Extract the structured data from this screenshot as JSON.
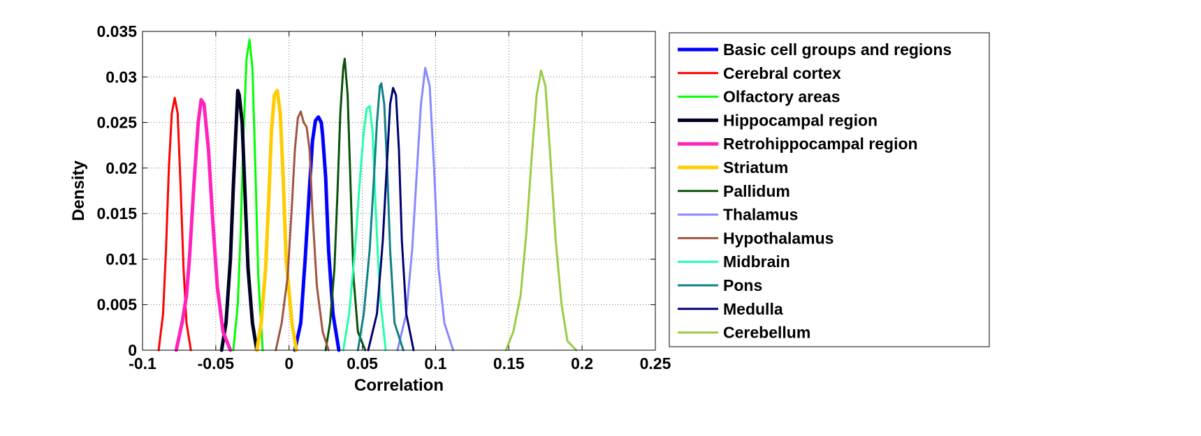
{
  "chart_data": {
    "type": "line",
    "title": "",
    "xlabel": "Correlation",
    "ylabel": "Density",
    "xlim": [
      -0.1,
      0.25
    ],
    "ylim": [
      0,
      0.035
    ],
    "x_ticks": [
      -0.1,
      -0.05,
      0,
      0.05,
      0.1,
      0.15,
      0.2,
      0.25
    ],
    "x_tick_labels": [
      "-0.1",
      "-0.05",
      "0",
      "0.05",
      "0.1",
      "0.15",
      "0.2",
      "0.25"
    ],
    "y_ticks": [
      0,
      0.005,
      0.01,
      0.015,
      0.02,
      0.025,
      0.03,
      0.035
    ],
    "y_tick_labels": [
      "0",
      "0.005",
      "0.01",
      "0.015",
      "0.02",
      "0.025",
      "0.03",
      "0.035"
    ],
    "grid": true,
    "legend_position": "outside-right",
    "series": [
      {
        "name": "Basic cell groups and regions",
        "color": "#0000ff",
        "thick": true,
        "x": [
          0.004,
          0.008,
          0.011,
          0.014,
          0.016,
          0.018,
          0.02,
          0.022,
          0.023,
          0.025,
          0.027,
          0.03,
          0.034
        ],
        "y": [
          0,
          0.003,
          0.01,
          0.018,
          0.023,
          0.0252,
          0.0256,
          0.025,
          0.0235,
          0.019,
          0.011,
          0.004,
          0
        ]
      },
      {
        "name": "Cerebral cortex",
        "color": "#ff0000",
        "thick": false,
        "x": [
          -0.089,
          -0.086,
          -0.084,
          -0.082,
          -0.08,
          -0.078,
          -0.076,
          -0.074,
          -0.072,
          -0.07,
          -0.067
        ],
        "y": [
          0,
          0.004,
          0.011,
          0.02,
          0.026,
          0.0277,
          0.026,
          0.018,
          0.009,
          0.003,
          0
        ]
      },
      {
        "name": "Olfactory areas",
        "color": "#00ff00",
        "thick": false,
        "x": [
          -0.038,
          -0.035,
          -0.033,
          -0.031,
          -0.029,
          -0.027,
          -0.025,
          -0.023,
          -0.021,
          -0.018
        ],
        "y": [
          0,
          0.005,
          0.013,
          0.024,
          0.032,
          0.0341,
          0.031,
          0.02,
          0.008,
          0
        ]
      },
      {
        "name": "Hippocampal region",
        "color": "#000022",
        "thick": true,
        "x": [
          -0.046,
          -0.043,
          -0.04,
          -0.038,
          -0.036,
          -0.035,
          -0.034,
          -0.032,
          -0.03,
          -0.028,
          -0.025,
          -0.022
        ],
        "y": [
          0,
          0.003,
          0.01,
          0.018,
          0.025,
          0.0285,
          0.028,
          0.025,
          0.017,
          0.009,
          0.003,
          0
        ]
      },
      {
        "name": "Retrohippocampal region",
        "color": "#ff22bb",
        "thick": true,
        "x": [
          -0.077,
          -0.073,
          -0.07,
          -0.068,
          -0.065,
          -0.062,
          -0.06,
          -0.058,
          -0.055,
          -0.052,
          -0.049,
          -0.045,
          -0.04
        ],
        "y": [
          0,
          0.003,
          0.006,
          0.01,
          0.018,
          0.025,
          0.0275,
          0.027,
          0.022,
          0.014,
          0.007,
          0.002,
          0
        ]
      },
      {
        "name": "Striatum",
        "color": "#ffcc00",
        "thick": true,
        "x": [
          -0.022,
          -0.019,
          -0.016,
          -0.014,
          -0.012,
          -0.01,
          -0.008,
          -0.006,
          -0.004,
          -0.002,
          0.002,
          0.005
        ],
        "y": [
          0,
          0.003,
          0.009,
          0.016,
          0.024,
          0.028,
          0.0285,
          0.026,
          0.019,
          0.01,
          0.003,
          0
        ]
      },
      {
        "name": "Pallidum",
        "color": "#0a500a",
        "thick": false,
        "x": [
          0.025,
          0.028,
          0.031,
          0.033,
          0.035,
          0.037,
          0.038,
          0.04,
          0.042,
          0.044,
          0.047,
          0.052
        ],
        "y": [
          0,
          0.003,
          0.009,
          0.017,
          0.026,
          0.031,
          0.032,
          0.028,
          0.018,
          0.008,
          0.002,
          0
        ]
      },
      {
        "name": "Thalamus",
        "color": "#8888ff",
        "thick": false,
        "x": [
          0.074,
          0.08,
          0.084,
          0.087,
          0.09,
          0.093,
          0.096,
          0.099,
          0.102,
          0.106,
          0.112
        ],
        "y": [
          0,
          0.004,
          0.011,
          0.019,
          0.027,
          0.031,
          0.029,
          0.02,
          0.009,
          0.003,
          0
        ]
      },
      {
        "name": "Hypothalamus",
        "color": "#a05540",
        "thick": false,
        "x": [
          -0.009,
          -0.005,
          -0.001,
          0.002,
          0.004,
          0.006,
          0.008,
          0.01,
          0.012,
          0.014,
          0.016,
          0.019,
          0.023,
          0.027
        ],
        "y": [
          0,
          0.003,
          0.008,
          0.016,
          0.022,
          0.0255,
          0.0262,
          0.025,
          0.0245,
          0.022,
          0.015,
          0.007,
          0.002,
          0
        ]
      },
      {
        "name": "Midbrain",
        "color": "#22ffaa",
        "thick": false,
        "x": [
          0.037,
          0.041,
          0.045,
          0.048,
          0.051,
          0.053,
          0.055,
          0.057,
          0.059,
          0.062,
          0.066
        ],
        "y": [
          0,
          0.004,
          0.011,
          0.018,
          0.024,
          0.0265,
          0.0268,
          0.024,
          0.016,
          0.006,
          0
        ]
      },
      {
        "name": "Pons",
        "color": "#108088",
        "thick": false,
        "x": [
          0.047,
          0.051,
          0.055,
          0.058,
          0.06,
          0.062,
          0.063,
          0.065,
          0.067,
          0.069,
          0.072,
          0.078
        ],
        "y": [
          0,
          0.004,
          0.011,
          0.019,
          0.025,
          0.029,
          0.0293,
          0.027,
          0.02,
          0.011,
          0.003,
          0
        ]
      },
      {
        "name": "Medulla",
        "color": "#000070",
        "thick": false,
        "x": [
          0.054,
          0.06,
          0.064,
          0.067,
          0.069,
          0.071,
          0.073,
          0.075,
          0.077,
          0.08,
          0.085
        ],
        "y": [
          0,
          0.004,
          0.012,
          0.021,
          0.027,
          0.0288,
          0.028,
          0.022,
          0.012,
          0.004,
          0
        ]
      },
      {
        "name": "Cerebellum",
        "color": "#99cc44",
        "thick": false,
        "x": [
          0.148,
          0.153,
          0.158,
          0.162,
          0.166,
          0.169,
          0.172,
          0.175,
          0.178,
          0.182,
          0.186,
          0.19,
          0.196
        ],
        "y": [
          0,
          0.002,
          0.006,
          0.013,
          0.022,
          0.028,
          0.0307,
          0.029,
          0.022,
          0.012,
          0.005,
          0.001,
          0
        ]
      }
    ]
  }
}
